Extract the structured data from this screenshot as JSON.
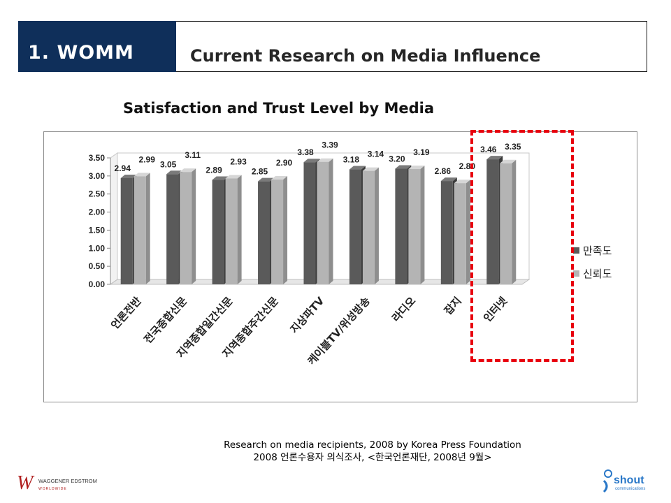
{
  "header": {
    "tag": "1. WOMM",
    "title": "Current Research on Media Influence"
  },
  "chart_heading": "Satisfaction and Trust Level by Media",
  "chart_data": {
    "type": "bar",
    "categories": [
      "언론전반",
      "전국종합신문",
      "지역종합일간신문",
      "지역종합주간신문",
      "지상파TV",
      "케이블TV/위성방송",
      "라디오",
      "잡지",
      "인터넷"
    ],
    "series": [
      {
        "name": "만족도",
        "values": [
          2.94,
          3.05,
          2.89,
          2.85,
          3.38,
          3.18,
          3.2,
          2.86,
          3.46
        ],
        "color": "#5a5a5a"
      },
      {
        "name": "신뢰도",
        "values": [
          2.99,
          3.11,
          2.93,
          2.9,
          3.39,
          3.14,
          3.19,
          2.8,
          3.35
        ],
        "color": "#b4b4b4"
      }
    ],
    "value_labels": {
      "만족도": [
        "2.94",
        "3.05",
        "2.89",
        "2.85",
        "3.38",
        "3.18",
        "3.20",
        "2.86",
        "3.46"
      ],
      "신뢰도": [
        "2.99",
        "3.11",
        "2.93",
        "2.90",
        "3.39",
        "3.14",
        "3.19",
        "2.80",
        "3.35"
      ]
    },
    "yticks": [
      "0.00",
      "0.50",
      "1.00",
      "1.50",
      "2.00",
      "2.50",
      "3.00",
      "3.50"
    ],
    "ylim": [
      0,
      3.5
    ],
    "legend_position": "right",
    "highlighted_category": "인터넷",
    "highlight_color": "#e8000d"
  },
  "source": {
    "line1": "Research on media recipients, 2008 by Korea Press Foundation",
    "line2": "2008 언론수용자 의식조사, <한국언론재단, 2008년 9월>"
  },
  "logos": {
    "left": "WAGGENER EDSTROM",
    "left_sub": "WORLDWIDE",
    "right": "shout",
    "right_sub": "communications"
  }
}
